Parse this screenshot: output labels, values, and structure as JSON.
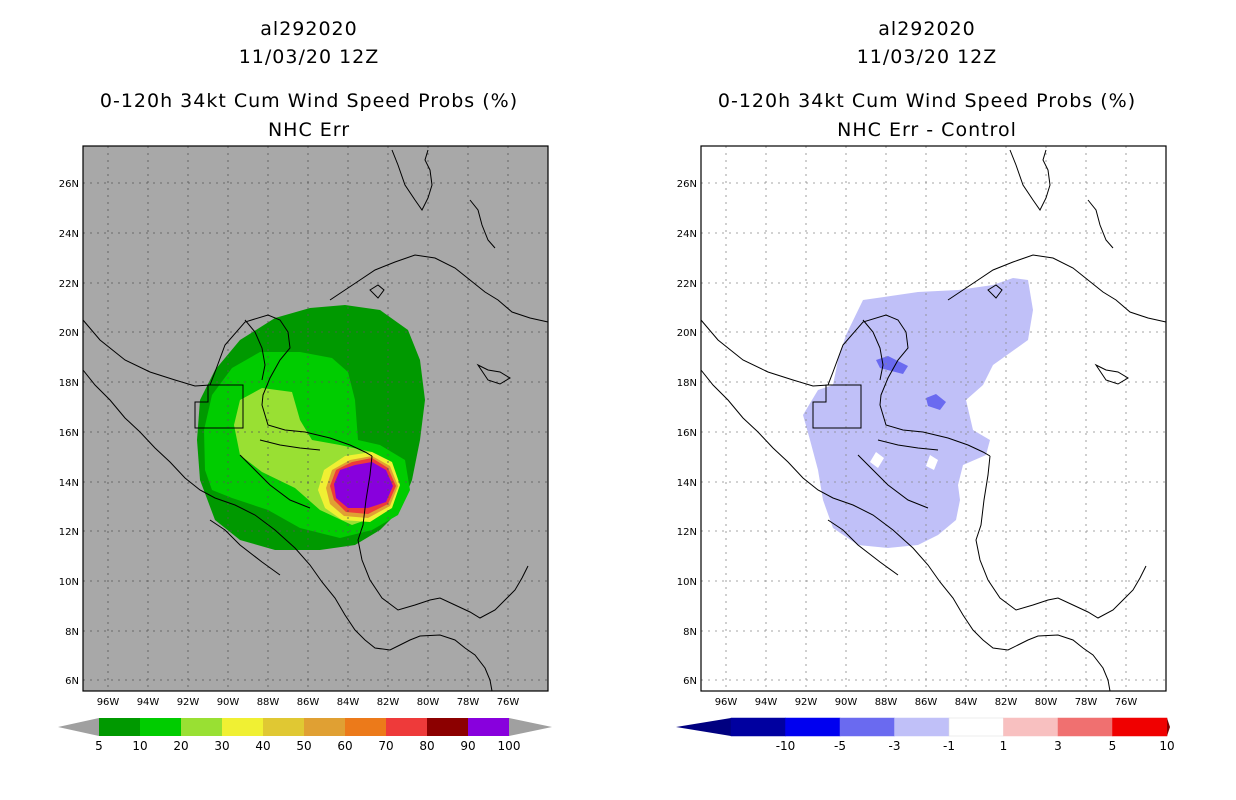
{
  "left": {
    "storm_id": "al292020",
    "date": "11/03/20 12Z",
    "title": "0-120h 34kt Cum Wind Speed Probs (%)",
    "subtitle": "NHC Err",
    "colors": [
      "#009900",
      "#00cc00",
      "#99e033",
      "#f0f033",
      "#e0c833",
      "#e0a033",
      "#ec7a1a",
      "#ee3a3a",
      "#8c0000",
      "#8800dd"
    ],
    "arrow_color": "#a0a0a0",
    "legend_labels": [
      "5",
      "10",
      "20",
      "30",
      "40",
      "50",
      "60",
      "70",
      "80",
      "90",
      "100"
    ]
  },
  "right": {
    "storm_id": "al292020",
    "date": "11/03/20 12Z",
    "title": "0-120h 34kt Cum Wind Speed Probs (%)",
    "subtitle": "NHC Err - Control",
    "colors": [
      "#0000a0",
      "#0000f0",
      "#6a6af0",
      "#c0c0f8",
      "#ffffff",
      "#f8c0c0",
      "#f07070",
      "#f00000"
    ],
    "arrow_colors": [
      "#000080",
      "#800000"
    ],
    "legend_labels": [
      "-10",
      "-5",
      "-3",
      "-1",
      "1",
      "3",
      "5",
      "10"
    ]
  },
  "axes": {
    "lon_labels": [
      "96W",
      "94W",
      "92W",
      "90W",
      "88W",
      "86W",
      "84W",
      "82W",
      "80W",
      "78W",
      "76W"
    ],
    "lat_labels": [
      "26N",
      "24N",
      "22N",
      "20N",
      "18N",
      "16N",
      "14N",
      "12N",
      "10N",
      "8N",
      "6N"
    ]
  }
}
